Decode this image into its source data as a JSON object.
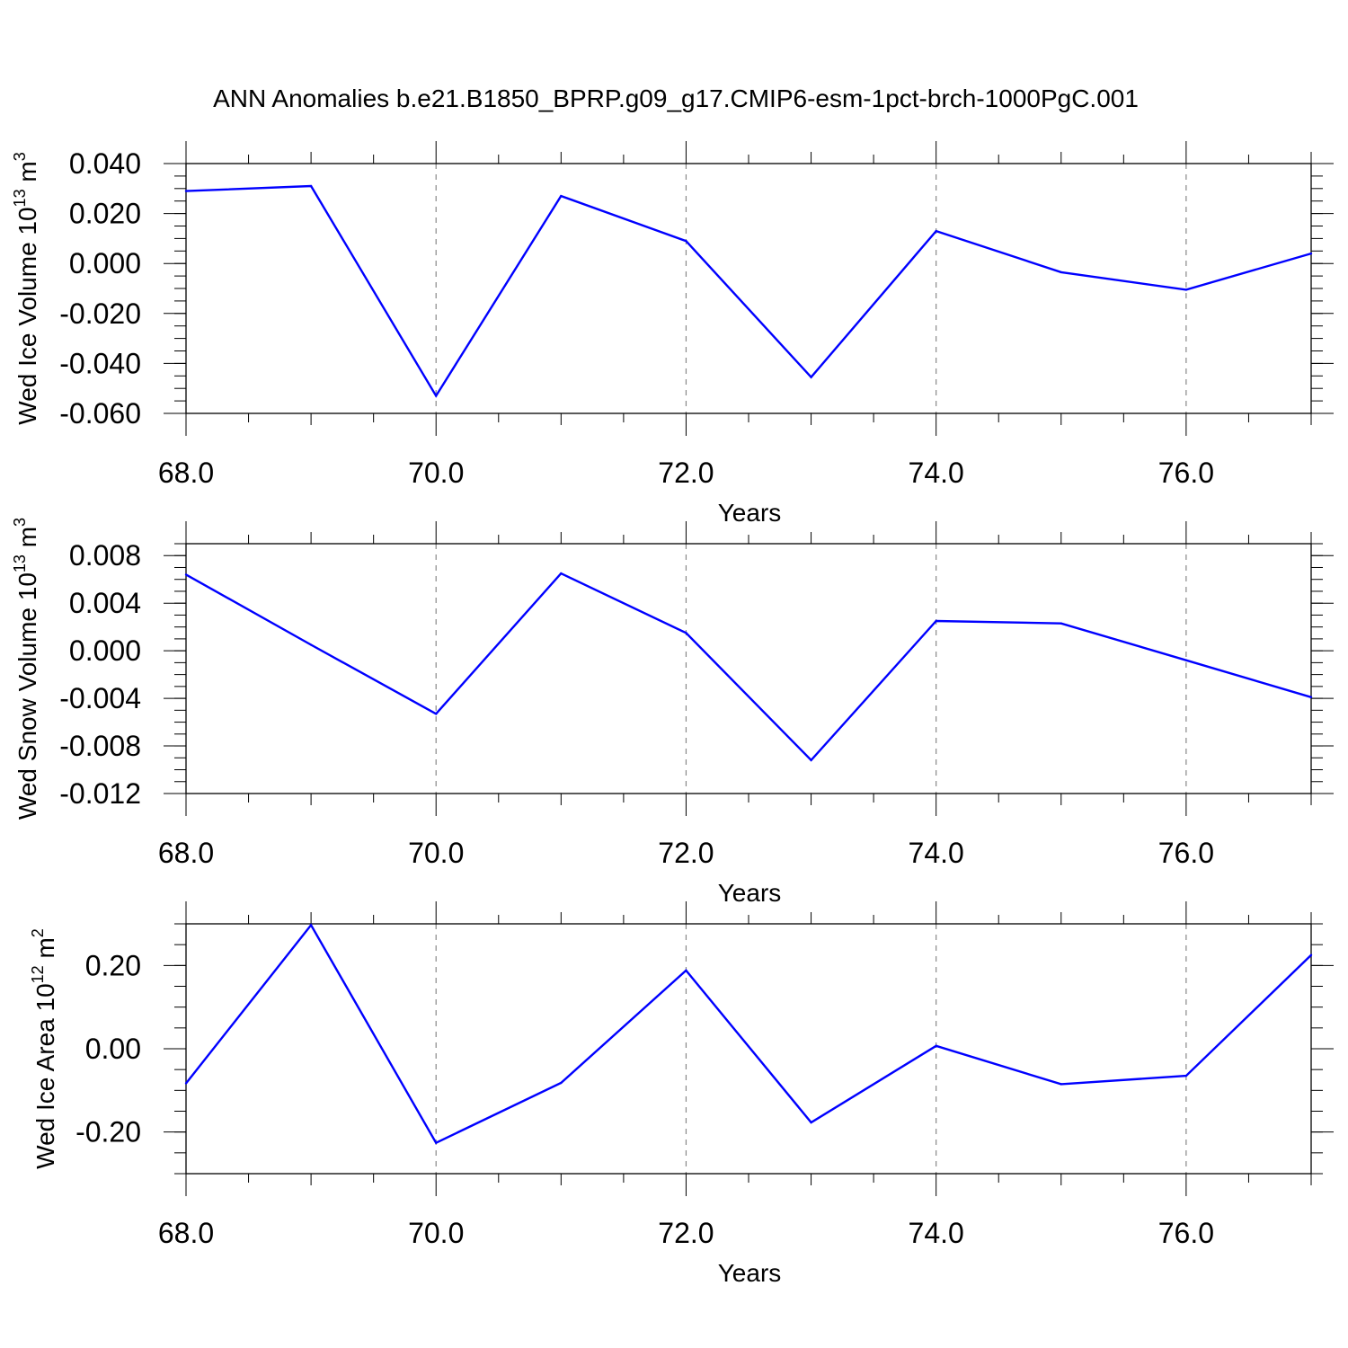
{
  "title": "ANN Anomalies b.e21.B1850_BPRP.g09_g17.CMIP6-esm-1pct-brch-1000PgC.001",
  "line_color": "#0000ff",
  "chart_data": [
    {
      "type": "line",
      "ylabel": "Wed Ice Volume 10",
      "ylabel_exp": "13",
      "ylabel_unit": "m",
      "ylabel_unit_exp": "3",
      "xlabel": "Years",
      "xlim": [
        68,
        77
      ],
      "ylim": [
        -0.06,
        0.04
      ],
      "x_ticks": [
        68,
        70,
        72,
        74,
        76
      ],
      "x_tick_labels": [
        "68.0",
        "70.0",
        "72.0",
        "74.0",
        "76.0"
      ],
      "y_ticks": [
        0.04,
        0.02,
        0.0,
        -0.02,
        -0.04,
        -0.06
      ],
      "y_tick_labels": [
        "0.040",
        "0.020",
        "0.000",
        "-0.020",
        "-0.040",
        "-0.060"
      ],
      "x": [
        68,
        69,
        70,
        71,
        72,
        73,
        74,
        75,
        76,
        77
      ],
      "series": [
        {
          "values": [
            0.029,
            0.031,
            -0.053,
            0.027,
            0.009,
            -0.0455,
            0.013,
            -0.0035,
            -0.0105,
            0.004
          ]
        }
      ]
    },
    {
      "type": "line",
      "ylabel": "Wed Snow Volume 10",
      "ylabel_exp": "13",
      "ylabel_unit": "m",
      "ylabel_unit_exp": "3",
      "xlabel": "Years",
      "xlim": [
        68,
        77
      ],
      "ylim": [
        -0.012,
        0.009
      ],
      "x_ticks": [
        68,
        70,
        72,
        74,
        76
      ],
      "x_tick_labels": [
        "68.0",
        "70.0",
        "72.0",
        "74.0",
        "76.0"
      ],
      "y_ticks": [
        0.008,
        0.004,
        0.0,
        -0.004,
        -0.008,
        -0.012
      ],
      "y_tick_labels": [
        "0.008",
        "0.004",
        "0.000",
        "-0.004",
        "-0.008",
        "-0.012"
      ],
      "x": [
        68,
        69,
        70,
        71,
        72,
        73,
        74,
        75,
        76,
        77
      ],
      "series": [
        {
          "values": [
            0.0064,
            0.0005,
            -0.0053,
            0.0065,
            0.0015,
            -0.0092,
            0.0025,
            0.0023,
            -0.0008,
            -0.0039
          ]
        }
      ]
    },
    {
      "type": "line",
      "ylabel": "Wed Ice Area 10",
      "ylabel_exp": "12",
      "ylabel_unit": "m",
      "ylabel_unit_exp": "2",
      "xlabel": "Years",
      "xlim": [
        68,
        77
      ],
      "ylim": [
        -0.3,
        0.3
      ],
      "x_ticks": [
        68,
        70,
        72,
        74,
        76
      ],
      "x_tick_labels": [
        "68.0",
        "70.0",
        "72.0",
        "74.0",
        "76.0"
      ],
      "y_ticks": [
        0.2,
        0.0,
        -0.2
      ],
      "y_tick_labels": [
        "0.20",
        "0.00",
        "-0.20"
      ],
      "x": [
        68,
        69,
        70,
        71,
        72,
        73,
        74,
        75,
        76,
        77
      ],
      "series": [
        {
          "values": [
            -0.083,
            0.297,
            -0.226,
            -0.082,
            0.188,
            -0.177,
            0.007,
            -0.085,
            -0.065,
            0.225
          ]
        }
      ]
    }
  ]
}
